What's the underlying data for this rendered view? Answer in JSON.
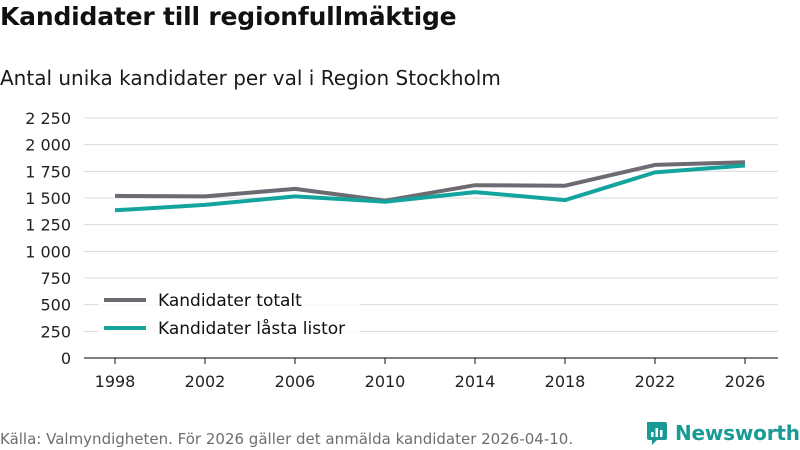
{
  "header": {
    "title": "Kandidater till regionfullmäktige",
    "subtitle": "Antal unika kandidater per val i Region Stockholm"
  },
  "footer": {
    "source": "Källa: Valmyndigheten. För 2026 gäller det anmälda kandidater 2026-04-10.",
    "brand": "Newsworthy"
  },
  "colors": {
    "series_total": "#6d6a72",
    "series_locked": "#13a59d",
    "grid": "#dcdcdc",
    "axis": "#333333",
    "brand": "#1a9a95"
  },
  "chart_data": {
    "type": "line",
    "title": "Kandidater till regionfullmäktige",
    "subtitle": "Antal unika kandidater per val i Region Stockholm",
    "xlabel": "",
    "ylabel": "",
    "x": [
      "1998",
      "2002",
      "2006",
      "2010",
      "2014",
      "2018",
      "2022",
      "2026"
    ],
    "ylim": [
      0,
      2250
    ],
    "yticks": [
      0,
      250,
      500,
      750,
      1000,
      1250,
      1500,
      1750,
      2000,
      2250
    ],
    "ytick_labels": [
      "0",
      "250",
      "500",
      "750",
      "1 000",
      "1 250",
      "1 500",
      "1 750",
      "2 000",
      "2 250"
    ],
    "grid": true,
    "legend_position": "bottom-left",
    "series": [
      {
        "name": "Kandidater totalt",
        "color": "#6d6a72",
        "values": [
          1520,
          1515,
          1585,
          1475,
          1620,
          1615,
          1810,
          1835
        ]
      },
      {
        "name": "Kandidater låsta listor",
        "color": "#13a59d",
        "values": [
          1385,
          1435,
          1515,
          1465,
          1555,
          1480,
          1740,
          1805
        ]
      }
    ]
  }
}
